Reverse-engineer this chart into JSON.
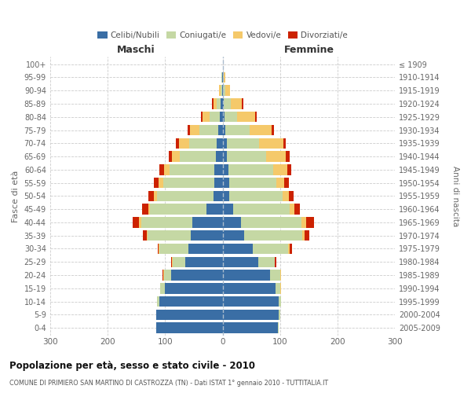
{
  "age_groups": [
    "0-4",
    "5-9",
    "10-14",
    "15-19",
    "20-24",
    "25-29",
    "30-34",
    "35-39",
    "40-44",
    "45-49",
    "50-54",
    "55-59",
    "60-64",
    "65-69",
    "70-74",
    "75-79",
    "80-84",
    "85-89",
    "90-94",
    "95-99",
    "100+"
  ],
  "birth_years": [
    "2005-2009",
    "2000-2004",
    "1995-1999",
    "1990-1994",
    "1985-1989",
    "1980-1984",
    "1975-1979",
    "1970-1974",
    "1965-1969",
    "1960-1964",
    "1955-1959",
    "1950-1954",
    "1945-1949",
    "1940-1944",
    "1935-1939",
    "1930-1934",
    "1925-1929",
    "1920-1924",
    "1915-1919",
    "1910-1914",
    "≤ 1909"
  ],
  "male_celibi": [
    115,
    115,
    110,
    100,
    90,
    65,
    60,
    55,
    52,
    28,
    16,
    15,
    14,
    12,
    10,
    8,
    5,
    3,
    1,
    1,
    0
  ],
  "male_coniugati": [
    1,
    1,
    4,
    8,
    12,
    22,
    50,
    75,
    90,
    98,
    98,
    88,
    78,
    62,
    48,
    33,
    18,
    8,
    3,
    1,
    0
  ],
  "male_vedovi": [
    0,
    0,
    0,
    0,
    1,
    1,
    1,
    2,
    3,
    3,
    6,
    8,
    10,
    14,
    18,
    16,
    12,
    5,
    2,
    0,
    0
  ],
  "male_divorziati": [
    0,
    0,
    0,
    0,
    1,
    1,
    2,
    7,
    11,
    11,
    9,
    8,
    8,
    6,
    5,
    4,
    2,
    2,
    0,
    0,
    0
  ],
  "female_nubili": [
    96,
    98,
    98,
    92,
    82,
    62,
    52,
    38,
    32,
    18,
    12,
    11,
    10,
    8,
    7,
    5,
    3,
    2,
    1,
    1,
    0
  ],
  "female_coniugate": [
    1,
    2,
    4,
    8,
    18,
    28,
    62,
    100,
    105,
    98,
    92,
    82,
    78,
    68,
    56,
    42,
    22,
    12,
    4,
    1,
    0
  ],
  "female_vedove": [
    0,
    0,
    0,
    1,
    1,
    1,
    3,
    4,
    8,
    9,
    11,
    14,
    24,
    34,
    42,
    38,
    32,
    20,
    8,
    2,
    0
  ],
  "female_divorziate": [
    0,
    0,
    0,
    0,
    1,
    2,
    3,
    9,
    14,
    9,
    9,
    8,
    7,
    6,
    5,
    4,
    2,
    2,
    0,
    0,
    0
  ],
  "colors": {
    "celibi": "#3a6ea5",
    "coniugati": "#c5d8a4",
    "vedovi": "#f5c96a",
    "divorziati": "#cc2200"
  },
  "xlim": 300,
  "title": "Popolazione per età, sesso e stato civile - 2010",
  "subtitle": "COMUNE DI PRIMIERO SAN MARTINO DI CASTROZZA (TN) - Dati ISTAT 1° gennaio 2010 - TUTTITALIA.IT",
  "ylabel_left": "Fasce di età",
  "ylabel_right": "Anni di nascita",
  "xlabel_left": "Maschi",
  "xlabel_right": "Femmine"
}
